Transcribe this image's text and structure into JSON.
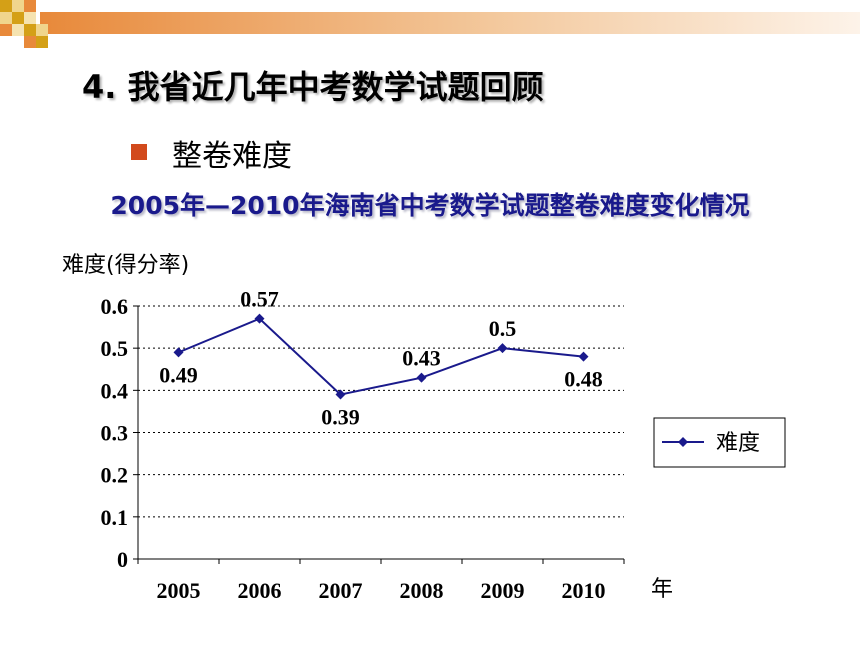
{
  "slide": {
    "heading": "4. 我省近几年中考数学试题回顾",
    "bullet": "整卷难度",
    "subtitle": "2005年—2010年海南省中考数学试题整卷难度变化情况"
  },
  "colors": {
    "accent_orange": "#e8893a",
    "accent_gold": "#d4a017",
    "bullet": "#d24a1c",
    "title_blue": "#1a1a8c",
    "series_line": "#1a1a8c"
  },
  "chart_data": {
    "type": "line",
    "ylabel": "难度(得分率)",
    "xlabel": "年",
    "categories": [
      "2005",
      "2006",
      "2007",
      "2008",
      "2009",
      "2010"
    ],
    "series": [
      {
        "name": "难度",
        "values": [
          0.49,
          0.57,
          0.39,
          0.43,
          0.5,
          0.48
        ]
      }
    ],
    "data_labels": [
      "0.49",
      "0.57",
      "0.39",
      "0.43",
      "0.5",
      "0.48"
    ],
    "y_ticks": [
      "0",
      "0.1",
      "0.2",
      "0.3",
      "0.4",
      "0.5",
      "0.6"
    ],
    "ylim": [
      0,
      0.6
    ],
    "grid": "horizontal dashed",
    "legend_position": "right"
  }
}
